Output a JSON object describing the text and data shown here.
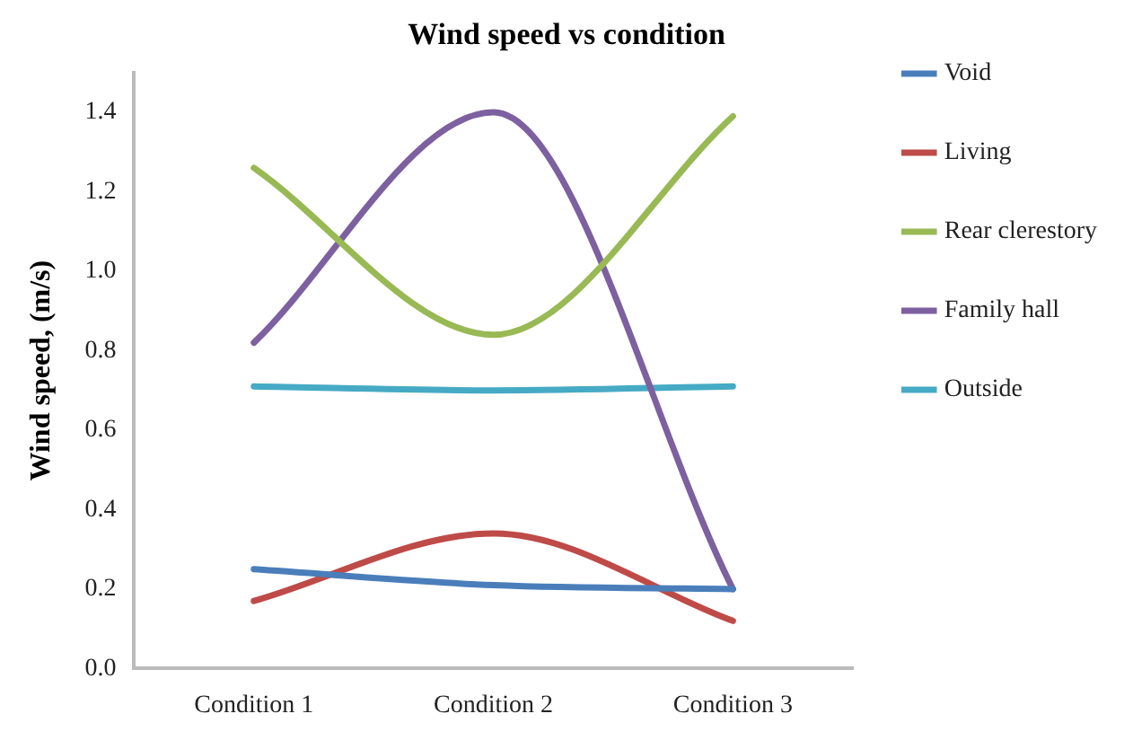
{
  "chart_data": {
    "type": "line",
    "title": "Wind speed vs condition",
    "ylabel": "Wind speed, (m/s)",
    "categories": [
      "Condition 1",
      "Condition 2",
      "Condition 3"
    ],
    "series": [
      {
        "name": "Void",
        "color": "#4a7ebb",
        "values": [
          0.25,
          0.21,
          0.2
        ]
      },
      {
        "name": "Living",
        "color": "#be4b48",
        "values": [
          0.17,
          0.34,
          0.12
        ]
      },
      {
        "name": "Rear clerestory",
        "color": "#98b954",
        "values": [
          1.26,
          0.84,
          1.39
        ]
      },
      {
        "name": "Family hall",
        "color": "#7d60a0",
        "values": [
          0.82,
          1.4,
          0.2
        ]
      },
      {
        "name": "Outside",
        "color": "#46aac5",
        "values": [
          0.71,
          0.7,
          0.71
        ]
      }
    ],
    "ylim": [
      0,
      1.5
    ],
    "yticks": [
      {
        "value": 0,
        "label": "0.0"
      },
      {
        "value": 0.2,
        "label": "0.2"
      },
      {
        "value": 0.4,
        "label": "0.4"
      },
      {
        "value": 0.6,
        "label": "0.6"
      },
      {
        "value": 0.8,
        "label": "0.8"
      },
      {
        "value": 1,
        "label": "1.0"
      },
      {
        "value": 1.2,
        "label": "1.2"
      },
      {
        "value": 1.4,
        "label": "1.4"
      }
    ],
    "grid": false,
    "legend": "right",
    "marker": "none",
    "line_style": "solid"
  }
}
